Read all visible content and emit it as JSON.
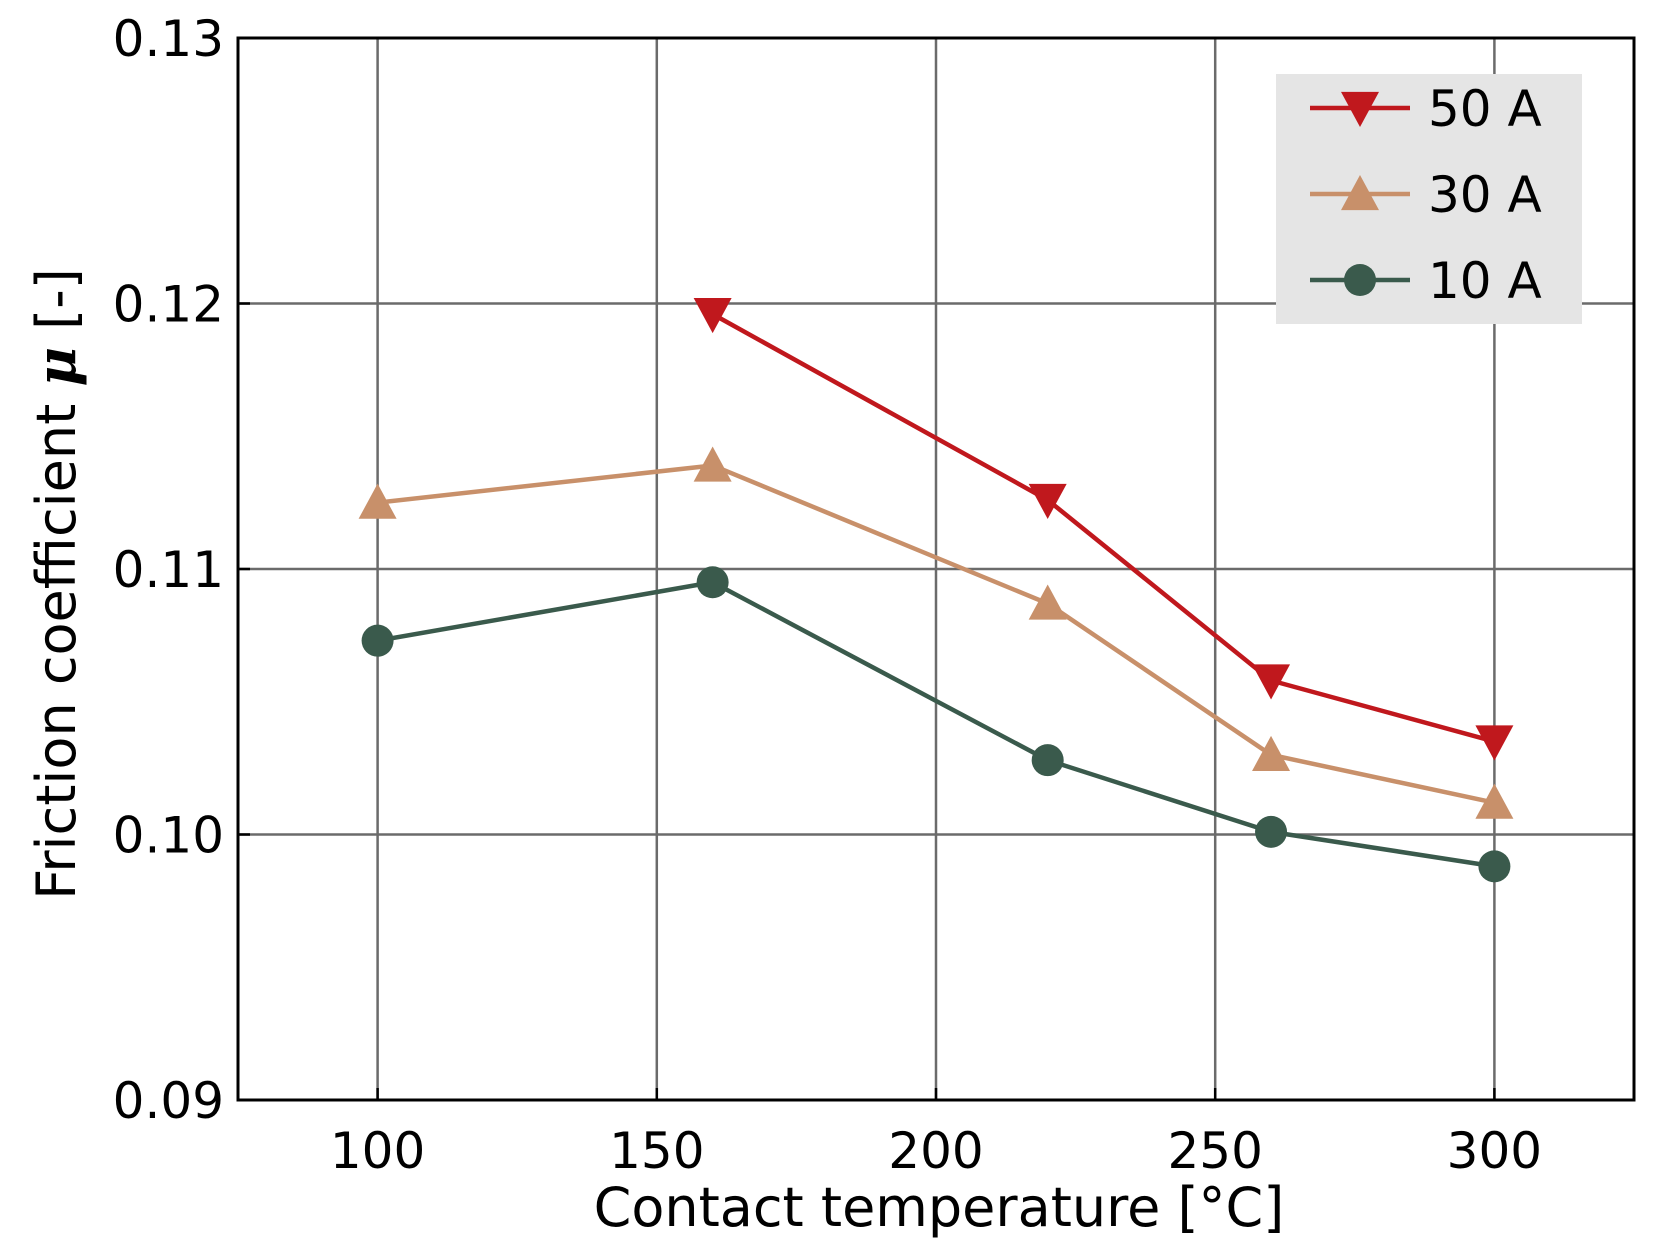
{
  "chart_data": {
    "type": "line",
    "title": "",
    "xlabel": "Contact temperature [°C]",
    "ylabel_prefix": "Friction coefficient ",
    "ylabel_symbol": "μ",
    "ylabel_suffix": " [-]",
    "xlim": [
      75,
      325
    ],
    "ylim": [
      0.09,
      0.13
    ],
    "xticks": [
      100,
      150,
      200,
      250,
      300
    ],
    "xtick_labels": [
      "100",
      "150",
      "200",
      "250",
      "300"
    ],
    "yticks": [
      0.09,
      0.1,
      0.11,
      0.12,
      0.13
    ],
    "ytick_labels": [
      "0.09",
      "0.10",
      "0.11",
      "0.12",
      "0.13"
    ],
    "grid": true,
    "legend_position": "top-right",
    "series": [
      {
        "name": "50 A",
        "marker": "triangle-down",
        "color": "#c0181d",
        "x": [
          160,
          220,
          260,
          300
        ],
        "y": [
          0.1196,
          0.1126,
          0.1058,
          0.1035
        ]
      },
      {
        "name": "30 A",
        "marker": "triangle-up",
        "color": "#c8906a",
        "x": [
          100,
          160,
          220,
          260,
          300
        ],
        "y": [
          0.1125,
          0.1139,
          0.1087,
          0.103,
          0.1012
        ]
      },
      {
        "name": "10 A",
        "marker": "circle",
        "color": "#3a5a4c",
        "x": [
          100,
          160,
          220,
          260,
          300
        ],
        "y": [
          0.1073,
          0.1095,
          0.1028,
          0.1001,
          0.0988
        ]
      }
    ]
  }
}
